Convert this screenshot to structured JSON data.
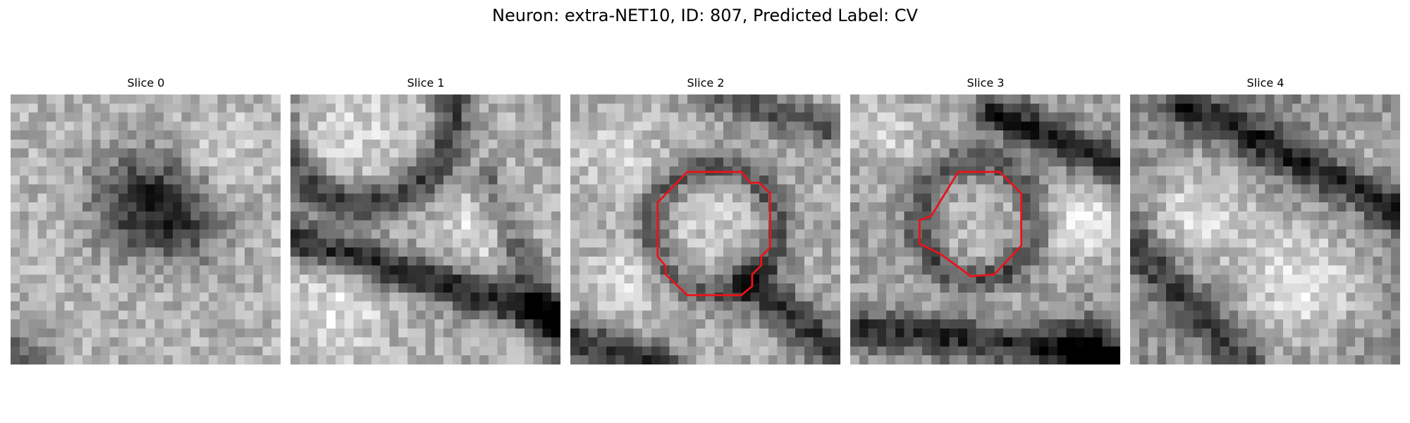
{
  "figure": {
    "title": "Neuron: extra-NET10, ID: 807, Predicted Label: CV"
  },
  "panels": [
    {
      "title": "Slice 0",
      "has_contour": false
    },
    {
      "title": "Slice 1",
      "has_contour": false
    },
    {
      "title": "Slice 2",
      "has_contour": true
    },
    {
      "title": "Slice 3",
      "has_contour": true
    },
    {
      "title": "Slice 4",
      "has_contour": false
    }
  ],
  "colors": {
    "contour": "#e8141a",
    "background": "#ffffff"
  },
  "image_style": "grayscale pixelated micrograph slices"
}
